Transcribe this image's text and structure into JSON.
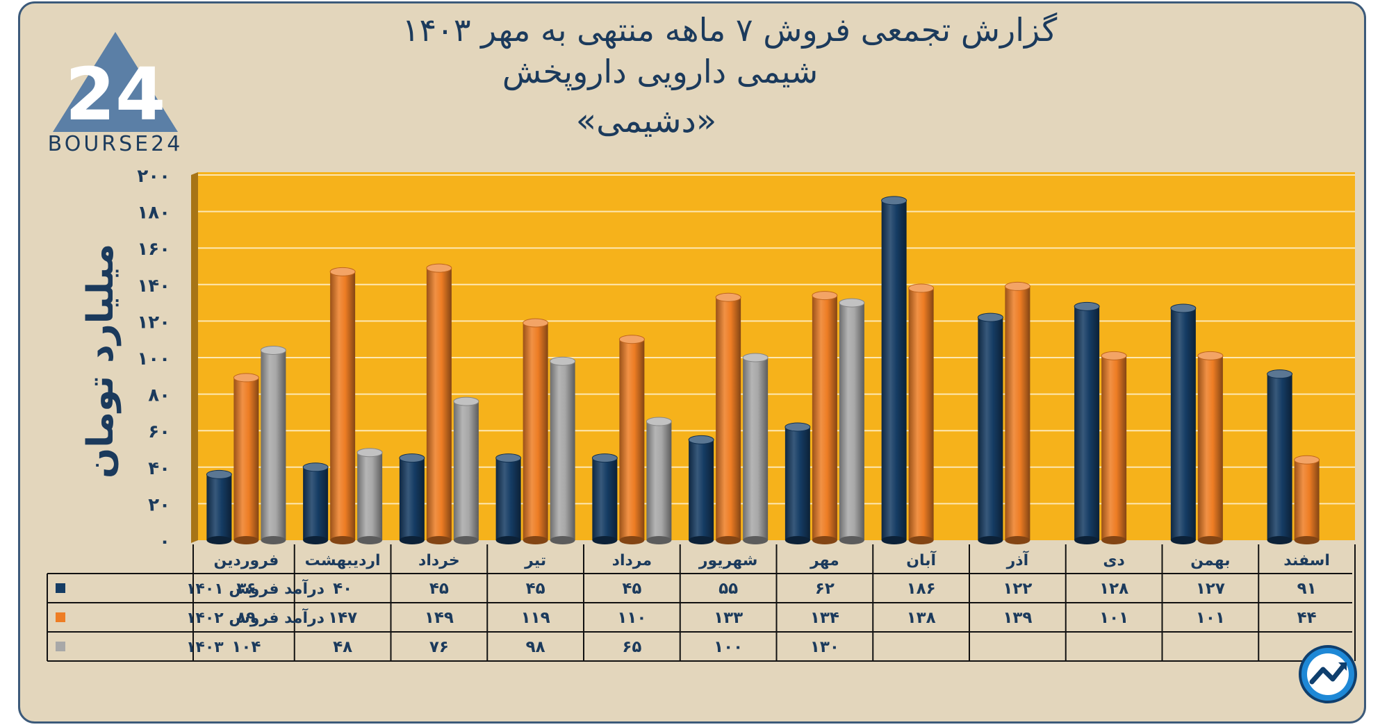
{
  "header": {
    "title_line1": "گزارش تجمعی فروش ۷ ماهه منتهی به مهر ۱۴۰۳",
    "title_line2": "شیمی دارویی داروپخش",
    "title_line3": "«دشیمی»",
    "logo_text": "BOURSE24"
  },
  "colors": {
    "plot_background": "#f6b21b",
    "series_1401": "#153c64",
    "series_1402": "#ee7d24",
    "series_1403": "#a8a8a8"
  },
  "chart_data": {
    "type": "bar",
    "ylabel": "میلیارد تومان",
    "ylim": [
      0,
      200
    ],
    "y_ticks": [
      0,
      20,
      40,
      60,
      80,
      100,
      120,
      140,
      160,
      180,
      200
    ],
    "y_tick_labels": [
      "۰",
      "۲۰",
      "۴۰",
      "۶۰",
      "۸۰",
      "۱۰۰",
      "۱۲۰",
      "۱۴۰",
      "۱۶۰",
      "۱۸۰",
      "۲۰۰"
    ],
    "categories": [
      "فروردین",
      "اردیبهشت",
      "خرداد",
      "تیر",
      "مرداد",
      "شهریور",
      "مهر",
      "آبان",
      "آذر",
      "دی",
      "بهمن",
      "اسفند"
    ],
    "grid": true,
    "series": [
      {
        "name": "درآمد فروش ۱۴۰۱",
        "values": [
          36,
          40,
          45,
          45,
          45,
          55,
          62,
          186,
          122,
          128,
          127,
          91
        ],
        "labels": [
          "۳۶",
          "۴۰",
          "۴۵",
          "۴۵",
          "۴۵",
          "۵۵",
          "۶۲",
          "۱۸۶",
          "۱۲۲",
          "۱۲۸",
          "۱۲۷",
          "۹۱"
        ]
      },
      {
        "name": "درآمد فروش ۱۴۰۲",
        "values": [
          89,
          147,
          149,
          119,
          110,
          133,
          134,
          138,
          139,
          101,
          101,
          44
        ],
        "labels": [
          "۸۹",
          "۱۴۷",
          "۱۴۹",
          "۱۱۹",
          "۱۱۰",
          "۱۳۳",
          "۱۳۴",
          "۱۳۸",
          "۱۳۹",
          "۱۰۱",
          "۱۰۱",
          "۴۴"
        ]
      },
      {
        "name": "۱۴۰۳",
        "values": [
          104,
          48,
          76,
          98,
          65,
          100,
          130,
          null,
          null,
          null,
          null,
          null
        ],
        "labels": [
          "۱۰۴",
          "۴۸",
          "۷۶",
          "۹۸",
          "۶۵",
          "۱۰۰",
          "۱۳۰",
          "",
          "",
          "",
          "",
          ""
        ]
      }
    ]
  }
}
